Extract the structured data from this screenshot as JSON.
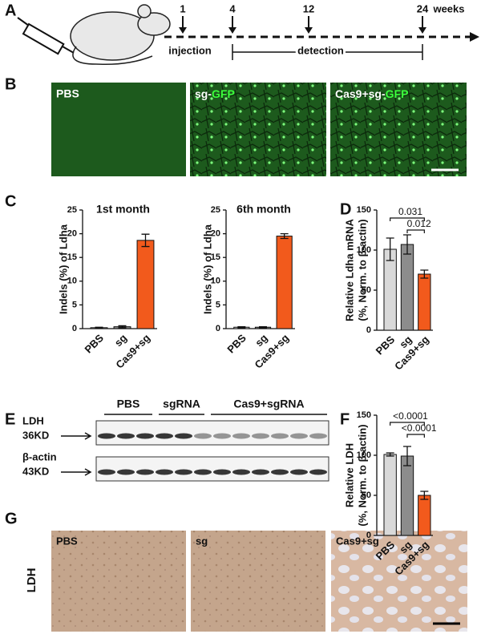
{
  "panel_labels": [
    "A",
    "B",
    "C",
    "D",
    "E",
    "F",
    "G"
  ],
  "timeline": {
    "time_points": [
      1,
      4,
      12,
      24
    ],
    "unit": "weeks",
    "injection": "injection",
    "detection": "detection"
  },
  "micrographs": [
    {
      "label": "PBS"
    },
    {
      "label": "sg-",
      "label_highlight": "GFP"
    },
    {
      "label": "Cas9+sg-",
      "label_highlight": "GFP"
    }
  ],
  "chart_data": [
    {
      "type": "bar",
      "title": "1st month",
      "ylabel": [
        "Indels (%) of Ldha"
      ],
      "categories": [
        "PBS",
        "sg",
        "Cas9+sg"
      ],
      "values": [
        0.2,
        0.4,
        18.6
      ],
      "errors": [
        0.1,
        0.2,
        1.3
      ],
      "colors": [
        "#d9d9d9",
        "#8c8c8c",
        "#f25a1c"
      ],
      "ylim": [
        0,
        25
      ],
      "yticks": [
        0,
        5,
        10,
        15,
        20,
        25
      ]
    },
    {
      "type": "bar",
      "title": "6th month",
      "ylabel": [
        "Indels (%) of Ldha"
      ],
      "categories": [
        "PBS",
        "sg",
        "Cas9+sg"
      ],
      "values": [
        0.3,
        0.3,
        19.5
      ],
      "errors": [
        0.1,
        0.1,
        0.5
      ],
      "colors": [
        "#d9d9d9",
        "#8c8c8c",
        "#f25a1c"
      ],
      "ylim": [
        0,
        25
      ],
      "yticks": [
        0,
        5,
        10,
        15,
        20,
        25
      ]
    },
    {
      "type": "bar",
      "ylabel": [
        "Relative Ldha mRNA",
        "(%, Norm. to β-actin)"
      ],
      "categories": [
        "PBS",
        "sg",
        "Cas9+sg"
      ],
      "values": [
        101,
        107,
        70
      ],
      "errors": [
        14,
        12,
        5
      ],
      "colors": [
        "#d9d9d9",
        "#8c8c8c",
        "#f25a1c"
      ],
      "ylim": [
        0,
        150
      ],
      "yticks": [
        0,
        50,
        100,
        150
      ],
      "annotations": [
        "0.031",
        "0.012"
      ]
    },
    {
      "type": "bar",
      "ylabel": [
        "Relative LDH",
        "(%, Norm. to β-actin)"
      ],
      "categories": [
        "PBS",
        "sg",
        "Cas9+sg"
      ],
      "values": [
        101,
        99,
        50
      ],
      "errors": [
        2,
        12,
        5
      ],
      "colors": [
        "#d9d9d9",
        "#8c8c8c",
        "#f25a1c"
      ],
      "ylim": [
        0,
        150
      ],
      "yticks": [
        0,
        50,
        100,
        150
      ],
      "annotations": [
        "<0.0001",
        "<0.0001"
      ]
    }
  ],
  "western_blot": {
    "groups": [
      "PBS",
      "sgRNA",
      "Cas9+sgRNA"
    ],
    "rows": [
      {
        "protein": "LDH",
        "size": "36KD"
      },
      {
        "protein": "β-actin",
        "size": "43KD"
      }
    ]
  },
  "ihc": {
    "stain": "LDH",
    "labels": [
      "PBS",
      "sg",
      "Cas9+sg"
    ]
  }
}
